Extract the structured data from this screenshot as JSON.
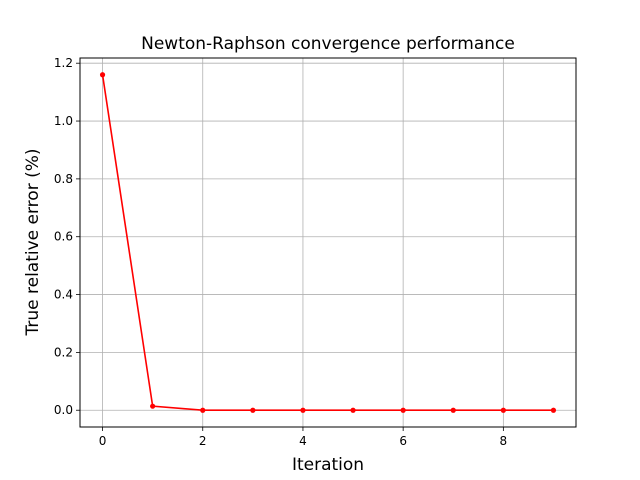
{
  "chart_data": {
    "type": "line",
    "title": "Newton-Raphson convergence performance",
    "xlabel": "Iteration",
    "ylabel": "True relative error (%)",
    "xlim": [
      -0.45,
      9.45
    ],
    "ylim": [
      -0.058,
      1.218
    ],
    "xticks": [
      0,
      2,
      4,
      6,
      8
    ],
    "yticks": [
      0.0,
      0.2,
      0.4,
      0.6,
      0.8,
      1.0,
      1.2
    ],
    "ytick_labels": [
      "0.0",
      "0.2",
      "0.4",
      "0.6",
      "0.8",
      "1.0",
      "1.2"
    ],
    "grid": true,
    "series": [
      {
        "color": "#ff0000",
        "marker": "dot",
        "x": [
          0,
          1,
          2,
          3,
          4,
          5,
          6,
          7,
          8,
          9
        ],
        "y": [
          1.16,
          0.014,
          0.0,
          0.0,
          0.0,
          0.0,
          0.0,
          0.0,
          0.0,
          0.0
        ]
      }
    ]
  }
}
